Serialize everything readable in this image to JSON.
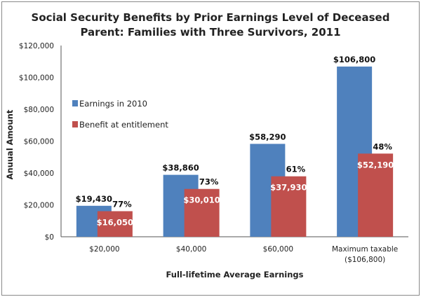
{
  "chart_data": {
    "type": "bar",
    "title_lines": [
      "Social Security Benefits by Prior Earnings Level of Deceased",
      "Parent: Families with Three Survivors, 2011"
    ],
    "xlabel": "Full-lifetime Average Earnings",
    "ylabel": "Anuual Amount",
    "ylim": [
      0,
      120000
    ],
    "yticks": [
      "$0",
      "$20,000",
      "$40,000",
      "$60,000",
      "$80,000",
      "$100,000",
      "$120,000"
    ],
    "ytick_values": [
      0,
      20000,
      40000,
      60000,
      80000,
      100000,
      120000
    ],
    "grid": false,
    "legend_placement": "left",
    "categories": [
      [
        "$20,000"
      ],
      [
        "$40,000"
      ],
      [
        "$60,000"
      ],
      [
        "Maximum taxable",
        "($106,800)"
      ]
    ],
    "series": [
      {
        "name": "Earnings in 2010",
        "color": "#4f81bd",
        "values": [
          19430,
          38860,
          58290,
          106800
        ],
        "labels": [
          "$19,430",
          "$38,860",
          "$58,290",
          "$106,800"
        ]
      },
      {
        "name": "Benefit at entitlement",
        "color": "#c0504d",
        "values": [
          16050,
          30010,
          37930,
          52190
        ],
        "labels": [
          "$16,050",
          "$30,010",
          "$37,930",
          "$52,190"
        ],
        "percent_labels": [
          "77%",
          "73%",
          "61%",
          "48%"
        ]
      }
    ]
  }
}
